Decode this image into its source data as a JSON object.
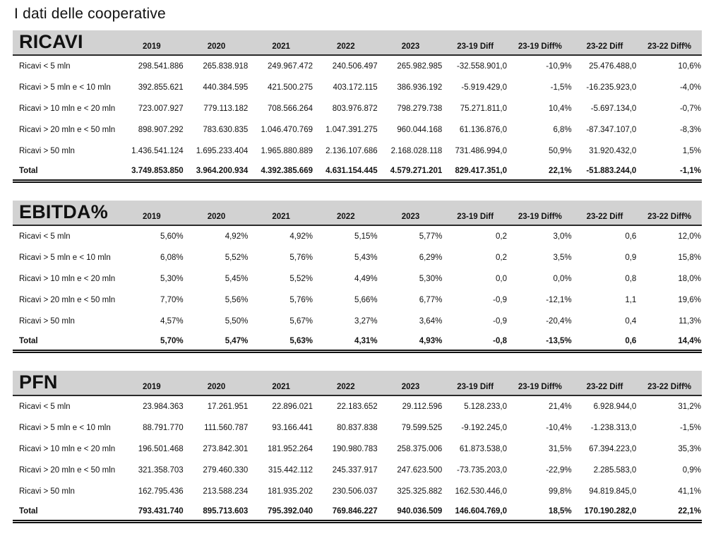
{
  "page": {
    "title": "I dati delle cooperative"
  },
  "columns": [
    "2019",
    "2020",
    "2021",
    "2022",
    "2023",
    "23-19 Diff",
    "23-19 Diff%",
    "23-22 Diff",
    "23-22 Diff%"
  ],
  "tables": [
    {
      "title": "RICAVI",
      "rows": [
        {
          "label": "Ricavi < 5 mln",
          "values": [
            "298.541.886",
            "265.838.918",
            "249.967.472",
            "240.506.497",
            "265.982.985",
            "-32.558.901,0",
            "-10,9%",
            "25.476.488,0",
            "10,6%"
          ]
        },
        {
          "label": "Ricavi > 5 mln e < 10 mln",
          "values": [
            "392.855.621",
            "440.384.595",
            "421.500.275",
            "403.172.115",
            "386.936.192",
            "-5.919.429,0",
            "-1,5%",
            "-16.235.923,0",
            "-4,0%"
          ]
        },
        {
          "label": "Ricavi > 10 mln e < 20 mln",
          "values": [
            "723.007.927",
            "779.113.182",
            "708.566.264",
            "803.976.872",
            "798.279.738",
            "75.271.811,0",
            "10,4%",
            "-5.697.134,0",
            "-0,7%"
          ]
        },
        {
          "label": "Ricavi > 20 mln e < 50 mln",
          "values": [
            "898.907.292",
            "783.630.835",
            "1.046.470.769",
            "1.047.391.275",
            "960.044.168",
            "61.136.876,0",
            "6,8%",
            "-87.347.107,0",
            "-8,3%"
          ]
        },
        {
          "label": "Ricavi > 50 mln",
          "values": [
            "1.436.541.124",
            "1.695.233.404",
            "1.965.880.889",
            "2.136.107.686",
            "2.168.028.118",
            "731.486.994,0",
            "50,9%",
            "31.920.432,0",
            "1,5%"
          ]
        }
      ],
      "total": {
        "label": "Total",
        "values": [
          "3.749.853.850",
          "3.964.200.934",
          "4.392.385.669",
          "4.631.154.445",
          "4.579.271.201",
          "829.417.351,0",
          "22,1%",
          "-51.883.244,0",
          "-1,1%"
        ]
      }
    },
    {
      "title": "EBITDA%",
      "rows": [
        {
          "label": "Ricavi < 5 mln",
          "values": [
            "5,60%",
            "4,92%",
            "4,92%",
            "5,15%",
            "5,77%",
            "0,2",
            "3,0%",
            "0,6",
            "12,0%"
          ]
        },
        {
          "label": "Ricavi > 5 mln e < 10 mln",
          "values": [
            "6,08%",
            "5,52%",
            "5,76%",
            "5,43%",
            "6,29%",
            "0,2",
            "3,5%",
            "0,9",
            "15,8%"
          ]
        },
        {
          "label": "Ricavi > 10 mln e < 20 mln",
          "values": [
            "5,30%",
            "5,45%",
            "5,52%",
            "4,49%",
            "5,30%",
            "0,0",
            "0,0%",
            "0,8",
            "18,0%"
          ]
        },
        {
          "label": "Ricavi > 20 mln e < 50 mln",
          "values": [
            "7,70%",
            "5,56%",
            "5,76%",
            "5,66%",
            "6,77%",
            "-0,9",
            "-12,1%",
            "1,1",
            "19,6%"
          ]
        },
        {
          "label": "Ricavi > 50 mln",
          "values": [
            "4,57%",
            "5,50%",
            "5,67%",
            "3,27%",
            "3,64%",
            "-0,9",
            "-20,4%",
            "0,4",
            "11,3%"
          ]
        }
      ],
      "total": {
        "label": "Total",
        "values": [
          "5,70%",
          "5,47%",
          "5,63%",
          "4,31%",
          "4,93%",
          "-0,8",
          "-13,5%",
          "0,6",
          "14,4%"
        ]
      }
    },
    {
      "title": "PFN",
      "rows": [
        {
          "label": "Ricavi < 5 mln",
          "values": [
            "23.984.363",
            "17.261.951",
            "22.896.021",
            "22.183.652",
            "29.112.596",
            "5.128.233,0",
            "21,4%",
            "6.928.944,0",
            "31,2%"
          ]
        },
        {
          "label": "Ricavi > 5 mln e < 10 mln",
          "values": [
            "88.791.770",
            "111.560.787",
            "93.166.441",
            "80.837.838",
            "79.599.525",
            "-9.192.245,0",
            "-10,4%",
            "-1.238.313,0",
            "-1,5%"
          ]
        },
        {
          "label": "Ricavi > 10 mln e < 20 mln",
          "values": [
            "196.501.468",
            "273.842.301",
            "181.952.264",
            "190.980.783",
            "258.375.006",
            "61.873.538,0",
            "31,5%",
            "67.394.223,0",
            "35,3%"
          ]
        },
        {
          "label": "Ricavi > 20 mln e < 50 mln",
          "values": [
            "321.358.703",
            "279.460.330",
            "315.442.112",
            "245.337.917",
            "247.623.500",
            "-73.735.203,0",
            "-22,9%",
            "2.285.583,0",
            "0,9%"
          ]
        },
        {
          "label": "Ricavi > 50 mln",
          "values": [
            "162.795.436",
            "213.588.234",
            "181.935.202",
            "230.506.037",
            "325.325.882",
            "162.530.446,0",
            "99,8%",
            "94.819.845,0",
            "41,1%"
          ]
        }
      ],
      "total": {
        "label": "Total",
        "values": [
          "793.431.740",
          "895.713.603",
          "795.392.040",
          "769.846.227",
          "940.036.509",
          "146.604.769,0",
          "18,5%",
          "170.190.282,0",
          "22,1%"
        ]
      }
    }
  ]
}
